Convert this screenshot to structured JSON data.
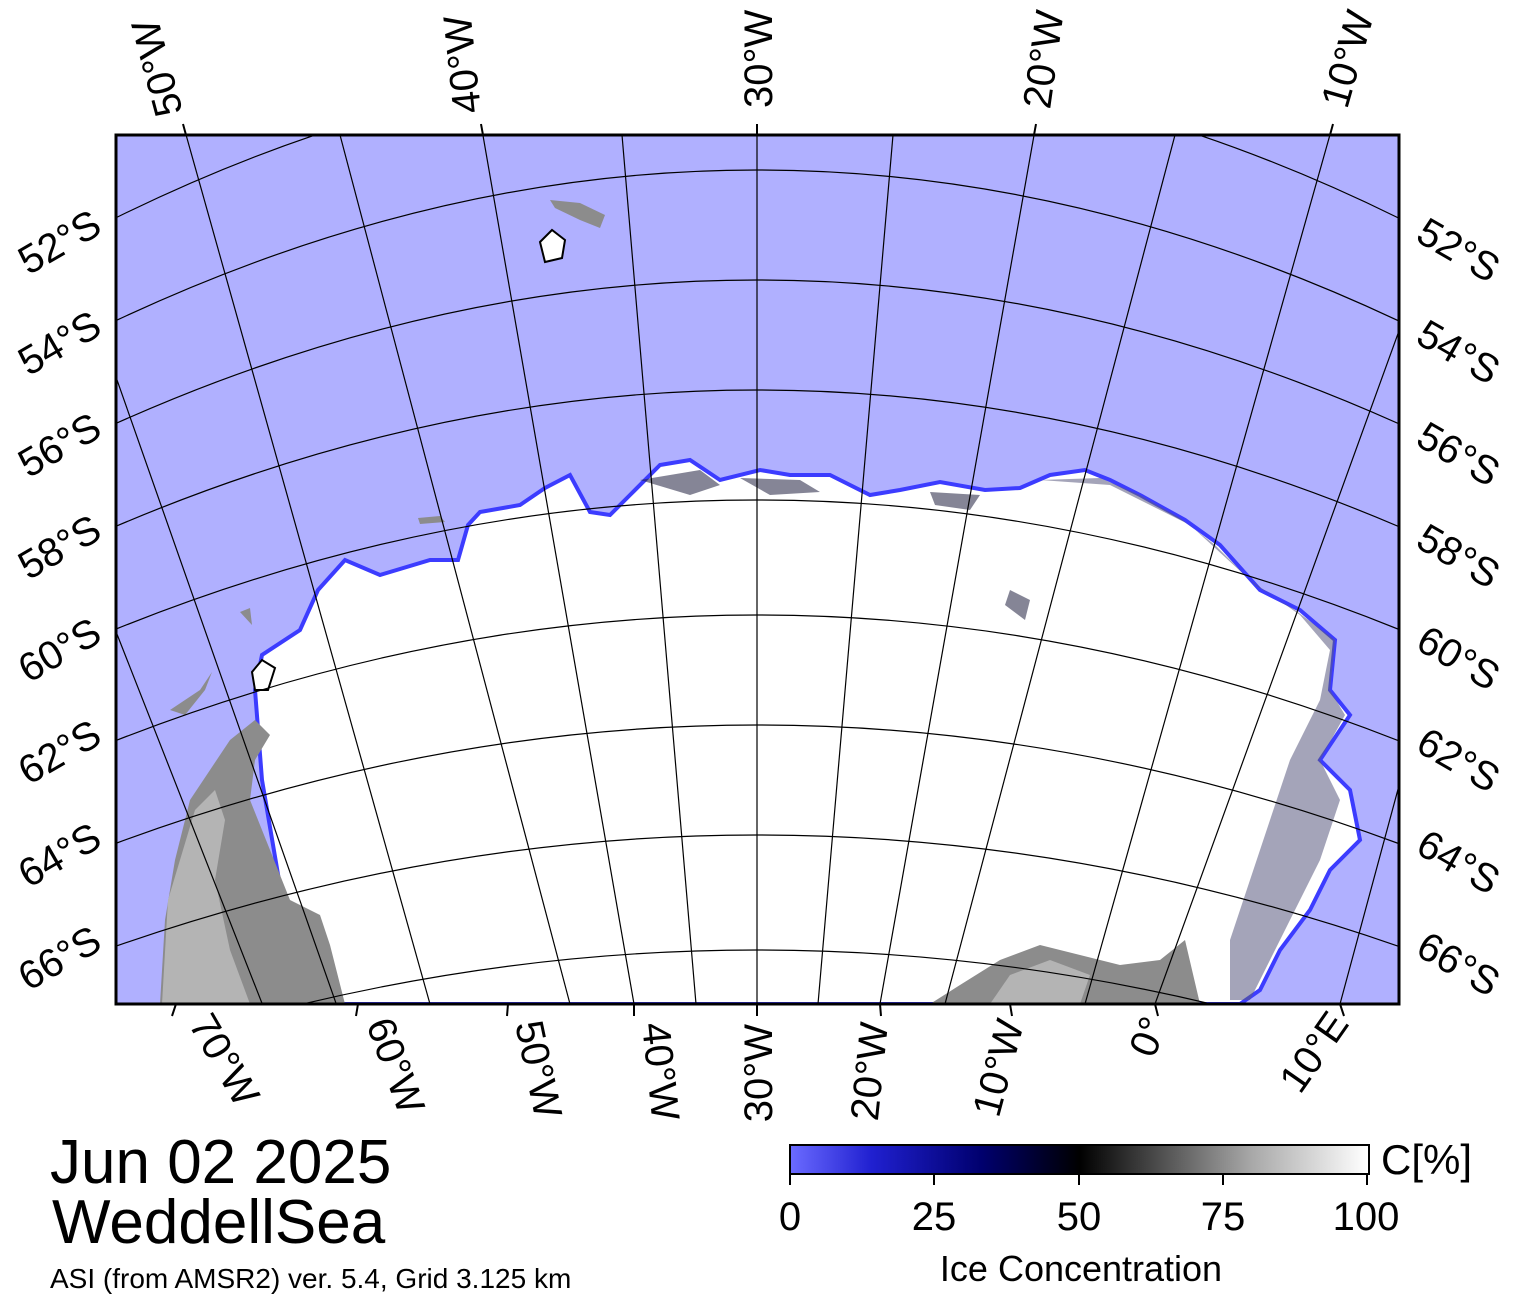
{
  "map": {
    "top_lon_labels": [
      "50°W",
      "40°W",
      "30°W",
      "20°W",
      "10°W"
    ],
    "bottom_lon_labels": [
      "70°W",
      "60°W",
      "50°W",
      "40°W",
      "30°W",
      "20°W",
      "10°W",
      "0°",
      "10°E"
    ],
    "lat_labels": [
      "52°S",
      "54°S",
      "56°S",
      "58°S",
      "60°S",
      "62°S",
      "64°S",
      "66°S"
    ],
    "colors": {
      "open_water": "#b0b0ff",
      "sea_ice": "#ffffff",
      "land": "#8c8c8c",
      "ice_shelf": "#b4b4b4",
      "ice_edge": "#3c3cff",
      "graticule": "#000000"
    }
  },
  "title": {
    "date": "Jun 02 2025",
    "region": "WeddellSea",
    "caption": "ASI (from AMSR2) ver. 5.4,  Grid 3.125 km"
  },
  "colorbar": {
    "unit": "C[%]",
    "title": "Ice Concentration",
    "ticks": [
      "0",
      "25",
      "50",
      "75",
      "100"
    ],
    "range": [
      0,
      100
    ]
  }
}
